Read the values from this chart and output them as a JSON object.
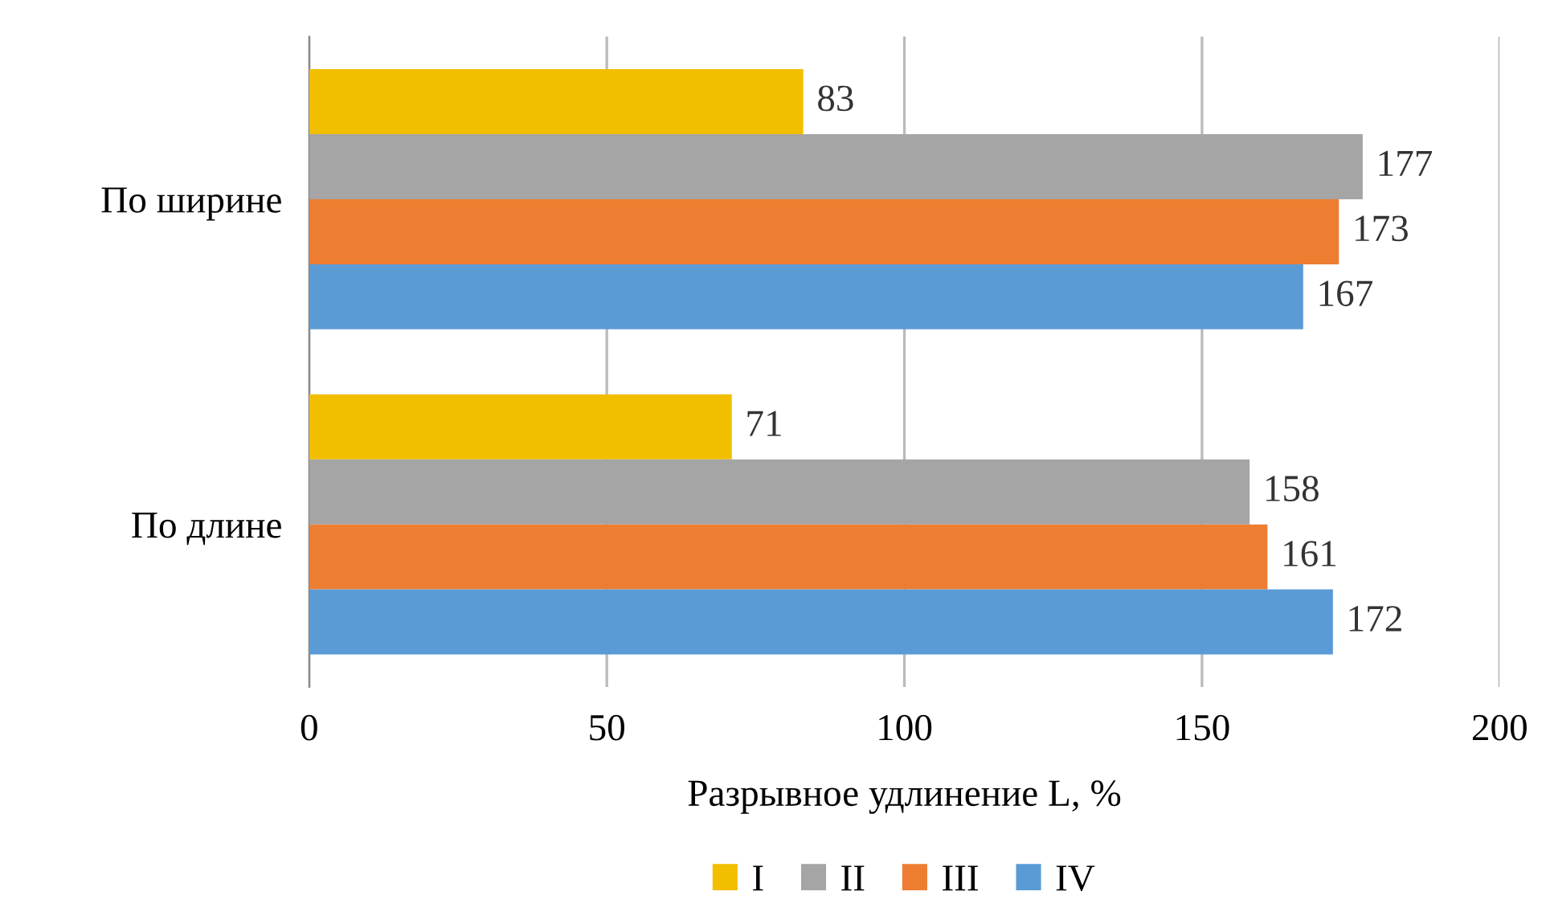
{
  "chart_data": {
    "type": "bar",
    "orientation": "horizontal",
    "xlabel": "Разрывное удлинение L, %",
    "categories": [
      "По ширине",
      "По длине"
    ],
    "series": [
      {
        "name": "I",
        "color": "#f2bf00",
        "values": [
          83,
          71
        ]
      },
      {
        "name": "II",
        "color": "#a5a5a5",
        "values": [
          177,
          158
        ]
      },
      {
        "name": "III",
        "color": "#ed7d31",
        "values": [
          173,
          161
        ]
      },
      {
        "name": "IV",
        "color": "#5b9bd5",
        "values": [
          167,
          172
        ]
      }
    ],
    "xlim": [
      0,
      200
    ],
    "xticks": [
      0,
      50,
      100,
      150,
      200
    ],
    "grid": "x",
    "legend": "bottom",
    "data_labels": true
  }
}
